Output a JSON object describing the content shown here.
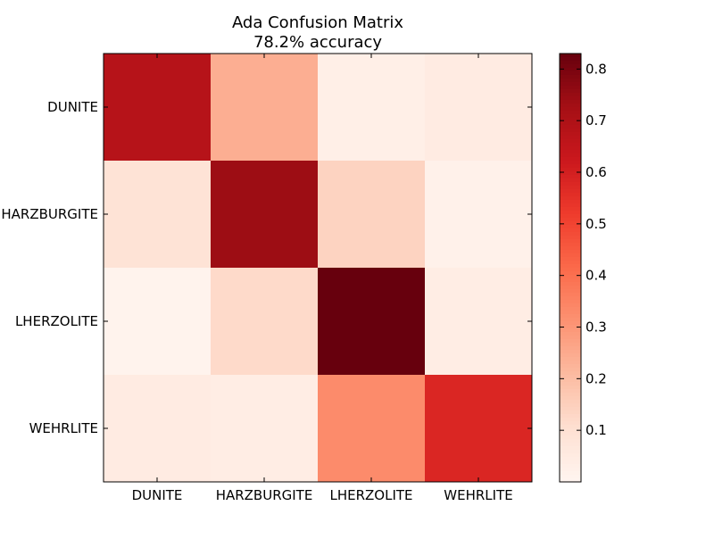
{
  "chart_data": {
    "type": "heatmap",
    "title": "Ada Confusion Matrix",
    "subtitle": "78.2% accuracy",
    "x_labels": [
      "DUNITE",
      "HARZBURGITE",
      "LHERZOLITE",
      "WEHRLITE"
    ],
    "y_labels": [
      "DUNITE",
      "HARZBURGITE",
      "LHERZOLITE",
      "WEHRLITE"
    ],
    "values": [
      [
        0.68,
        0.24,
        0.03,
        0.05
      ],
      [
        0.09,
        0.74,
        0.14,
        0.02
      ],
      [
        0.01,
        0.12,
        0.83,
        0.04
      ],
      [
        0.05,
        0.04,
        0.33,
        0.58
      ]
    ],
    "colorbar": {
      "colormap": "Reds",
      "range": [
        0.0,
        0.83
      ],
      "ticks": [
        0.1,
        0.2,
        0.3,
        0.4,
        0.5,
        0.6,
        0.7,
        0.8
      ],
      "tick_labels": [
        "0.1",
        "0.2",
        "0.3",
        "0.4",
        "0.5",
        "0.6",
        "0.7",
        "0.8"
      ]
    },
    "grid": false
  }
}
